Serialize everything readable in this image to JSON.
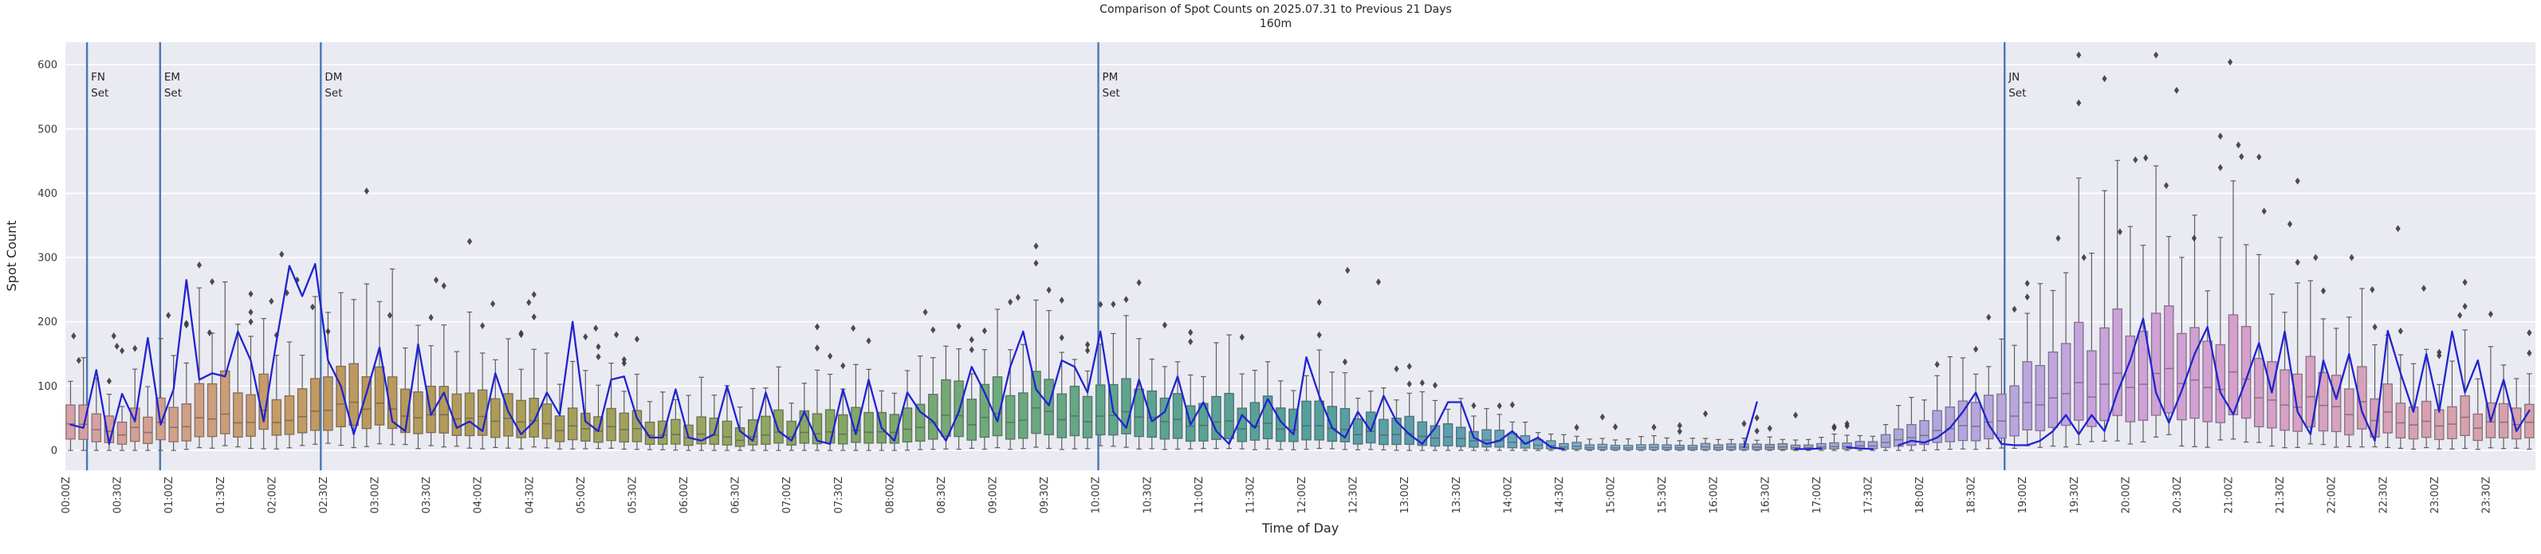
{
  "title": {
    "line1": "Comparison of Spot Counts on 2025.07.31 to Previous 21 Days",
    "line2": "160m"
  },
  "axes": {
    "xlabel": "Time of Day",
    "ylabel": "Spot Count",
    "y_ticks": [
      0,
      100,
      200,
      300,
      400,
      500,
      600
    ],
    "x_ticks": [
      "00:00Z",
      "00:30Z",
      "01:00Z",
      "01:30Z",
      "02:00Z",
      "02:30Z",
      "03:00Z",
      "03:30Z",
      "04:00Z",
      "04:30Z",
      "05:00Z",
      "05:30Z",
      "06:00Z",
      "06:30Z",
      "07:00Z",
      "07:30Z",
      "08:00Z",
      "08:30Z",
      "09:00Z",
      "09:30Z",
      "10:00Z",
      "10:30Z",
      "11:00Z",
      "11:30Z",
      "12:00Z",
      "12:30Z",
      "13:00Z",
      "13:30Z",
      "14:00Z",
      "14:30Z",
      "15:00Z",
      "15:30Z",
      "16:00Z",
      "16:30Z",
      "17:00Z",
      "17:30Z",
      "18:00Z",
      "18:30Z",
      "19:00Z",
      "19:30Z",
      "20:00Z",
      "20:30Z",
      "21:00Z",
      "21:30Z",
      "22:00Z",
      "22:30Z",
      "23:00Z",
      "23:30Z"
    ]
  },
  "set_lines": [
    {
      "name": "FN",
      "label_line1": "FN",
      "label_line2": "Set",
      "hour": 0.21
    },
    {
      "name": "EM",
      "label_line1": "EM",
      "label_line2": "Set",
      "hour": 0.92
    },
    {
      "name": "DM",
      "label_line1": "DM",
      "label_line2": "Set",
      "hour": 2.48
    },
    {
      "name": "PM",
      "label_line1": "PM",
      "label_line2": "Set",
      "hour": 10.03
    },
    {
      "name": "JN",
      "label_line1": "JN",
      "label_line2": "Set",
      "hour": 18.83
    }
  ],
  "chart_data": {
    "type": "boxplot+line",
    "title": "Comparison of Spot Counts on 2025.07.31 to Previous 21 Days",
    "subtitle": "160m",
    "xlabel": "Time of Day",
    "ylabel": "Spot Count",
    "ylim": [
      0,
      600
    ],
    "x_hours": [
      0,
      24
    ],
    "slot_minutes": 7.5,
    "grid": true,
    "legend": "none",
    "colors": {
      "plot_bg": "#eaeaf2",
      "grid": "#ffffff",
      "today_line": "#2024cf",
      "set_line": "#4878b4",
      "flier": "#3d3d3d",
      "whisker": "#5e5e5e",
      "text": "#262626",
      "tick_text": "#3a3a3a",
      "box_edge_mix": "#41414b"
    },
    "seed": 20250731,
    "box_color_stops": [
      [
        0,
        "#d5a0a7"
      ],
      [
        1,
        "#d2a089"
      ],
      [
        2,
        "#c59b66"
      ],
      [
        3,
        "#bb985c"
      ],
      [
        4.5,
        "#a89e58"
      ],
      [
        6,
        "#9aa45f"
      ],
      [
        7.5,
        "#83a763"
      ],
      [
        9,
        "#6daa7c"
      ],
      [
        10.5,
        "#5ca48e"
      ],
      [
        12,
        "#55a09c"
      ],
      [
        13.5,
        "#5e9fae"
      ],
      [
        15,
        "#85b4d4"
      ],
      [
        16.5,
        "#97a6c6"
      ],
      [
        17.5,
        "#a9a6da"
      ],
      [
        19,
        "#bca6de"
      ],
      [
        20,
        "#cda2d8"
      ],
      [
        21,
        "#d5a0cd"
      ],
      [
        22,
        "#d6a2bd"
      ],
      [
        23,
        "#d6a2af"
      ],
      [
        24,
        "#d5a1a8"
      ]
    ],
    "anchors_every_minutes": 30,
    "anchors_lo_q1_med_q3_hi": [
      [
        0,
        15,
        35,
        60,
        110
      ],
      [
        0,
        12,
        30,
        55,
        100
      ],
      [
        0,
        15,
        40,
        75,
        140
      ],
      [
        5,
        22,
        48,
        105,
        215
      ],
      [
        5,
        30,
        55,
        100,
        190
      ],
      [
        8,
        30,
        60,
        110,
        190
      ],
      [
        10,
        35,
        65,
        115,
        230
      ],
      [
        5,
        25,
        50,
        90,
        175
      ],
      [
        5,
        20,
        45,
        80,
        160
      ],
      [
        3,
        18,
        40,
        70,
        130
      ],
      [
        2,
        15,
        35,
        60,
        110
      ],
      [
        2,
        12,
        30,
        55,
        100
      ],
      [
        0,
        10,
        25,
        50,
        95
      ],
      [
        0,
        8,
        20,
        45,
        85
      ],
      [
        0,
        10,
        25,
        55,
        100
      ],
      [
        0,
        10,
        25,
        55,
        105
      ],
      [
        0,
        12,
        30,
        60,
        110
      ],
      [
        2,
        18,
        45,
        90,
        160
      ],
      [
        3,
        20,
        50,
        100,
        170
      ],
      [
        3,
        22,
        55,
        100,
        165
      ],
      [
        5,
        25,
        55,
        105,
        175
      ],
      [
        3,
        20,
        50,
        90,
        150
      ],
      [
        2,
        15,
        40,
        75,
        130
      ],
      [
        2,
        15,
        35,
        70,
        125
      ],
      [
        2,
        15,
        35,
        70,
        120
      ],
      [
        1,
        12,
        30,
        60,
        100
      ],
      [
        0,
        8,
        22,
        45,
        80
      ],
      [
        0,
        6,
        18,
        35,
        65
      ],
      [
        0,
        4,
        12,
        25,
        45
      ],
      [
        0,
        2,
        6,
        12,
        25
      ],
      [
        0,
        1,
        4,
        8,
        18
      ],
      [
        0,
        1,
        4,
        8,
        16
      ],
      [
        0,
        1,
        5,
        10,
        20
      ],
      [
        0,
        1,
        4,
        8,
        16
      ],
      [
        0,
        2,
        5,
        10,
        20
      ],
      [
        0,
        3,
        8,
        16,
        30
      ],
      [
        0,
        8,
        20,
        40,
        75
      ],
      [
        2,
        18,
        45,
        90,
        170
      ],
      [
        5,
        30,
        70,
        130,
        230
      ],
      [
        10,
        40,
        90,
        170,
        300
      ],
      [
        15,
        50,
        110,
        200,
        350
      ],
      [
        15,
        55,
        120,
        210,
        360
      ],
      [
        12,
        50,
        110,
        190,
        330
      ],
      [
        10,
        40,
        90,
        160,
        290
      ],
      [
        8,
        30,
        70,
        120,
        220
      ],
      [
        5,
        25,
        55,
        95,
        170
      ],
      [
        3,
        20,
        45,
        75,
        140
      ],
      [
        2,
        18,
        40,
        65,
        120
      ]
    ],
    "explicit_outliers_hour_value": [
      [
        0.03,
        178
      ],
      [
        0.08,
        140
      ],
      [
        0.42,
        178
      ],
      [
        0.45,
        162
      ],
      [
        0.5,
        155
      ],
      [
        0.95,
        210
      ],
      [
        1.35,
        183
      ],
      [
        1.75,
        215
      ],
      [
        1.95,
        232
      ],
      [
        2.05,
        305
      ],
      [
        2.1,
        245
      ],
      [
        2.2,
        265
      ],
      [
        2.35,
        223
      ],
      [
        2.5,
        185
      ],
      [
        3.1,
        210
      ],
      [
        3.55,
        265
      ],
      [
        4.1,
        228
      ],
      [
        4.45,
        230
      ],
      [
        5.1,
        190
      ],
      [
        5.3,
        180
      ],
      [
        7.6,
        190
      ],
      [
        8.3,
        215
      ],
      [
        9.2,
        238
      ],
      [
        12.4,
        280
      ],
      [
        12.7,
        262
      ],
      [
        19.3,
        330
      ],
      [
        19.55,
        300
      ],
      [
        19.9,
        340
      ],
      [
        20.05,
        452
      ],
      [
        20.15,
        455
      ],
      [
        20.35,
        412
      ],
      [
        20.45,
        560
      ],
      [
        20.62,
        330
      ],
      [
        20.97,
        604
      ],
      [
        21.05,
        475
      ],
      [
        21.08,
        457
      ],
      [
        21.3,
        372
      ],
      [
        21.55,
        352
      ],
      [
        21.8,
        300
      ],
      [
        22.15,
        300
      ],
      [
        22.35,
        250
      ],
      [
        22.6,
        345
      ],
      [
        22.85,
        252
      ],
      [
        23.2,
        210
      ]
    ],
    "today_spot_counts_7p5min": [
      40,
      35,
      125,
      10,
      88,
      45,
      175,
      40,
      95,
      265,
      110,
      120,
      115,
      185,
      140,
      45,
      170,
      287,
      240,
      290,
      140,
      100,
      25,
      90,
      160,
      45,
      30,
      165,
      55,
      90,
      35,
      45,
      30,
      120,
      60,
      25,
      45,
      90,
      55,
      200,
      45,
      30,
      110,
      115,
      50,
      20,
      20,
      95,
      20,
      15,
      25,
      100,
      30,
      15,
      90,
      30,
      15,
      60,
      15,
      10,
      95,
      25,
      110,
      35,
      15,
      90,
      60,
      45,
      15,
      60,
      130,
      90,
      45,
      130,
      185,
      95,
      70,
      140,
      130,
      90,
      185,
      60,
      35,
      110,
      45,
      60,
      115,
      40,
      75,
      30,
      10,
      55,
      35,
      80,
      45,
      25,
      145,
      85,
      35,
      20,
      60,
      30,
      85,
      45,
      25,
      10,
      35,
      75,
      75,
      20,
      10,
      15,
      30,
      10,
      20,
      5,
      2,
      null,
      null,
      null,
      null,
      null,
      null,
      null,
      null,
      null,
      null,
      null,
      null,
      null,
      5,
      75,
      null,
      null,
      2,
      2,
      3,
      null,
      5,
      3,
      2,
      null,
      8,
      15,
      12,
      20,
      35,
      60,
      90,
      40,
      10,
      8,
      8,
      15,
      30,
      55,
      25,
      55,
      30,
      90,
      140,
      205,
      90,
      43,
      93,
      150,
      192,
      90,
      56,
      110,
      167,
      90,
      185,
      60,
      25,
      140,
      80,
      150,
      60,
      15,
      186,
      120,
      60,
      150,
      60,
      185,
      90,
      140,
      45,
      110,
      30,
      62
    ]
  }
}
